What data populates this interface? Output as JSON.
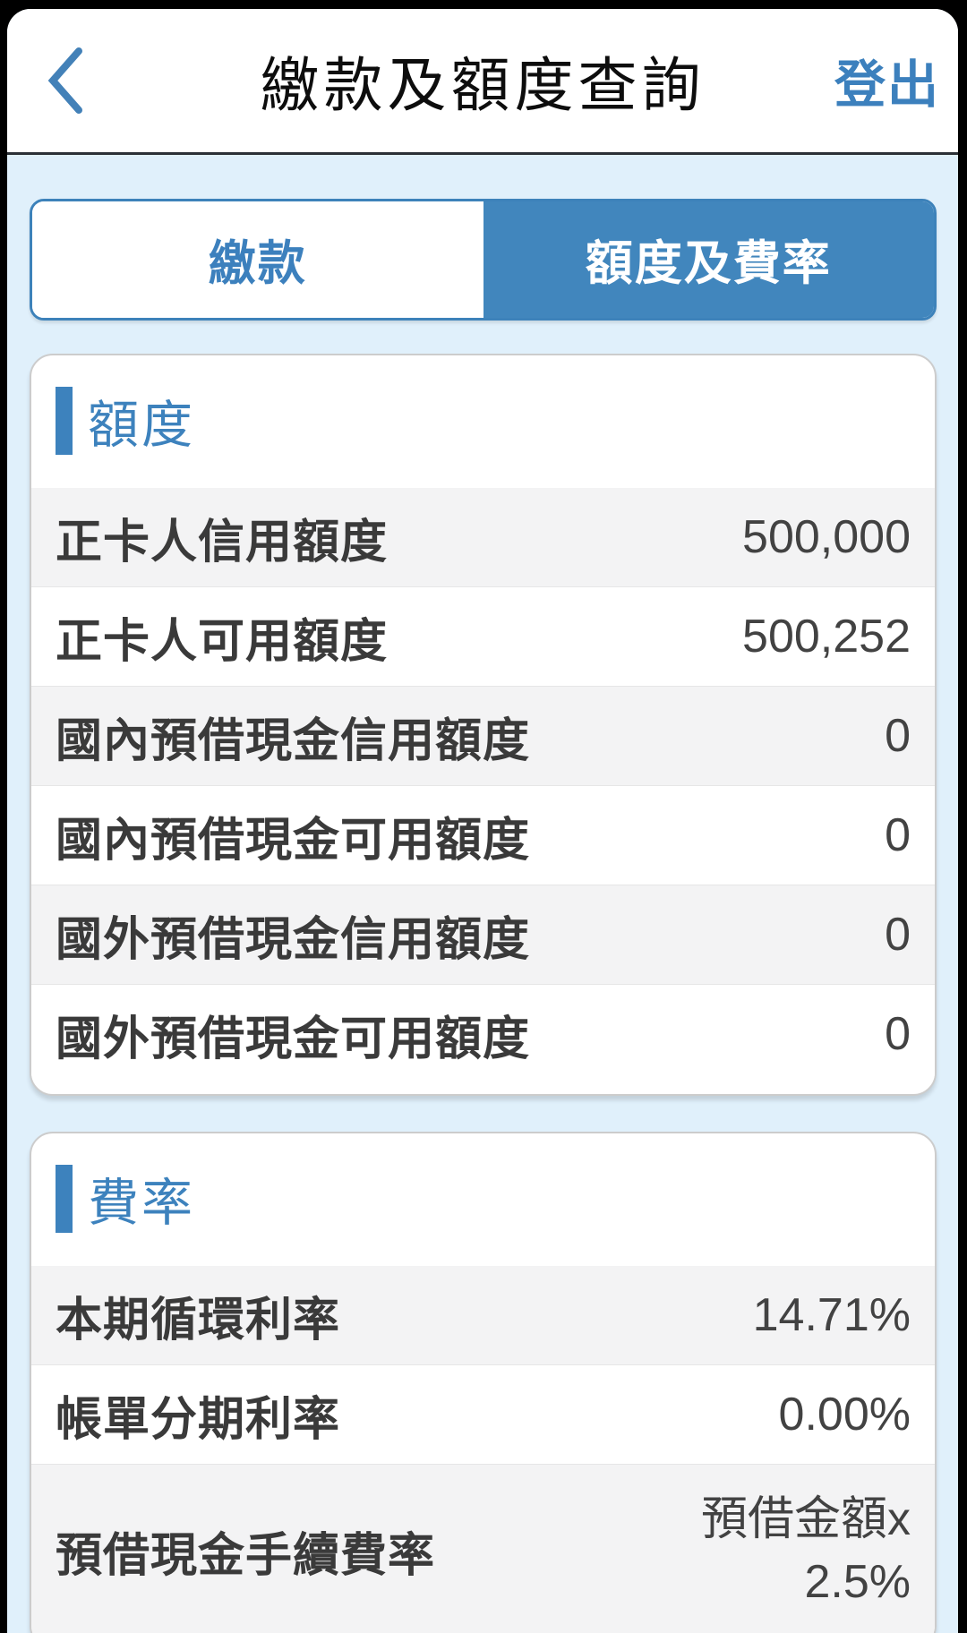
{
  "header": {
    "title": "繳款及額度查詢",
    "logout_label": "登出",
    "back_icon": "chevron-left"
  },
  "tabs": [
    {
      "label": "繳款",
      "active": false
    },
    {
      "label": "額度及費率",
      "active": true
    }
  ],
  "sections": [
    {
      "title": "額度",
      "rows": [
        {
          "label": "正卡人信用額度",
          "value": "500,000"
        },
        {
          "label": "正卡人可用額度",
          "value": "500,252"
        },
        {
          "label": "國內預借現金信用額度",
          "value": "0"
        },
        {
          "label": "國內預借現金可用額度",
          "value": "0"
        },
        {
          "label": "國外預借現金信用額度",
          "value": "0"
        },
        {
          "label": "國外預借現金可用額度",
          "value": "0"
        }
      ]
    },
    {
      "title": "費率",
      "rows": [
        {
          "label": "本期循環利率",
          "value": "14.71%"
        },
        {
          "label": "帳單分期利率",
          "value": "0.00%"
        },
        {
          "label": "預借現金手續費率",
          "value": [
            "預借金額x",
            "2.5%"
          ]
        }
      ]
    }
  ],
  "colors": {
    "accent_blue": "#3d82bd",
    "tab_active_bg": "#4186bd",
    "page_bg": "#e0f0fb",
    "row_alt_bg": "#f3f3f4",
    "label_text": "#3a3a3a",
    "value_text": "#424242",
    "frame": "#000000"
  }
}
